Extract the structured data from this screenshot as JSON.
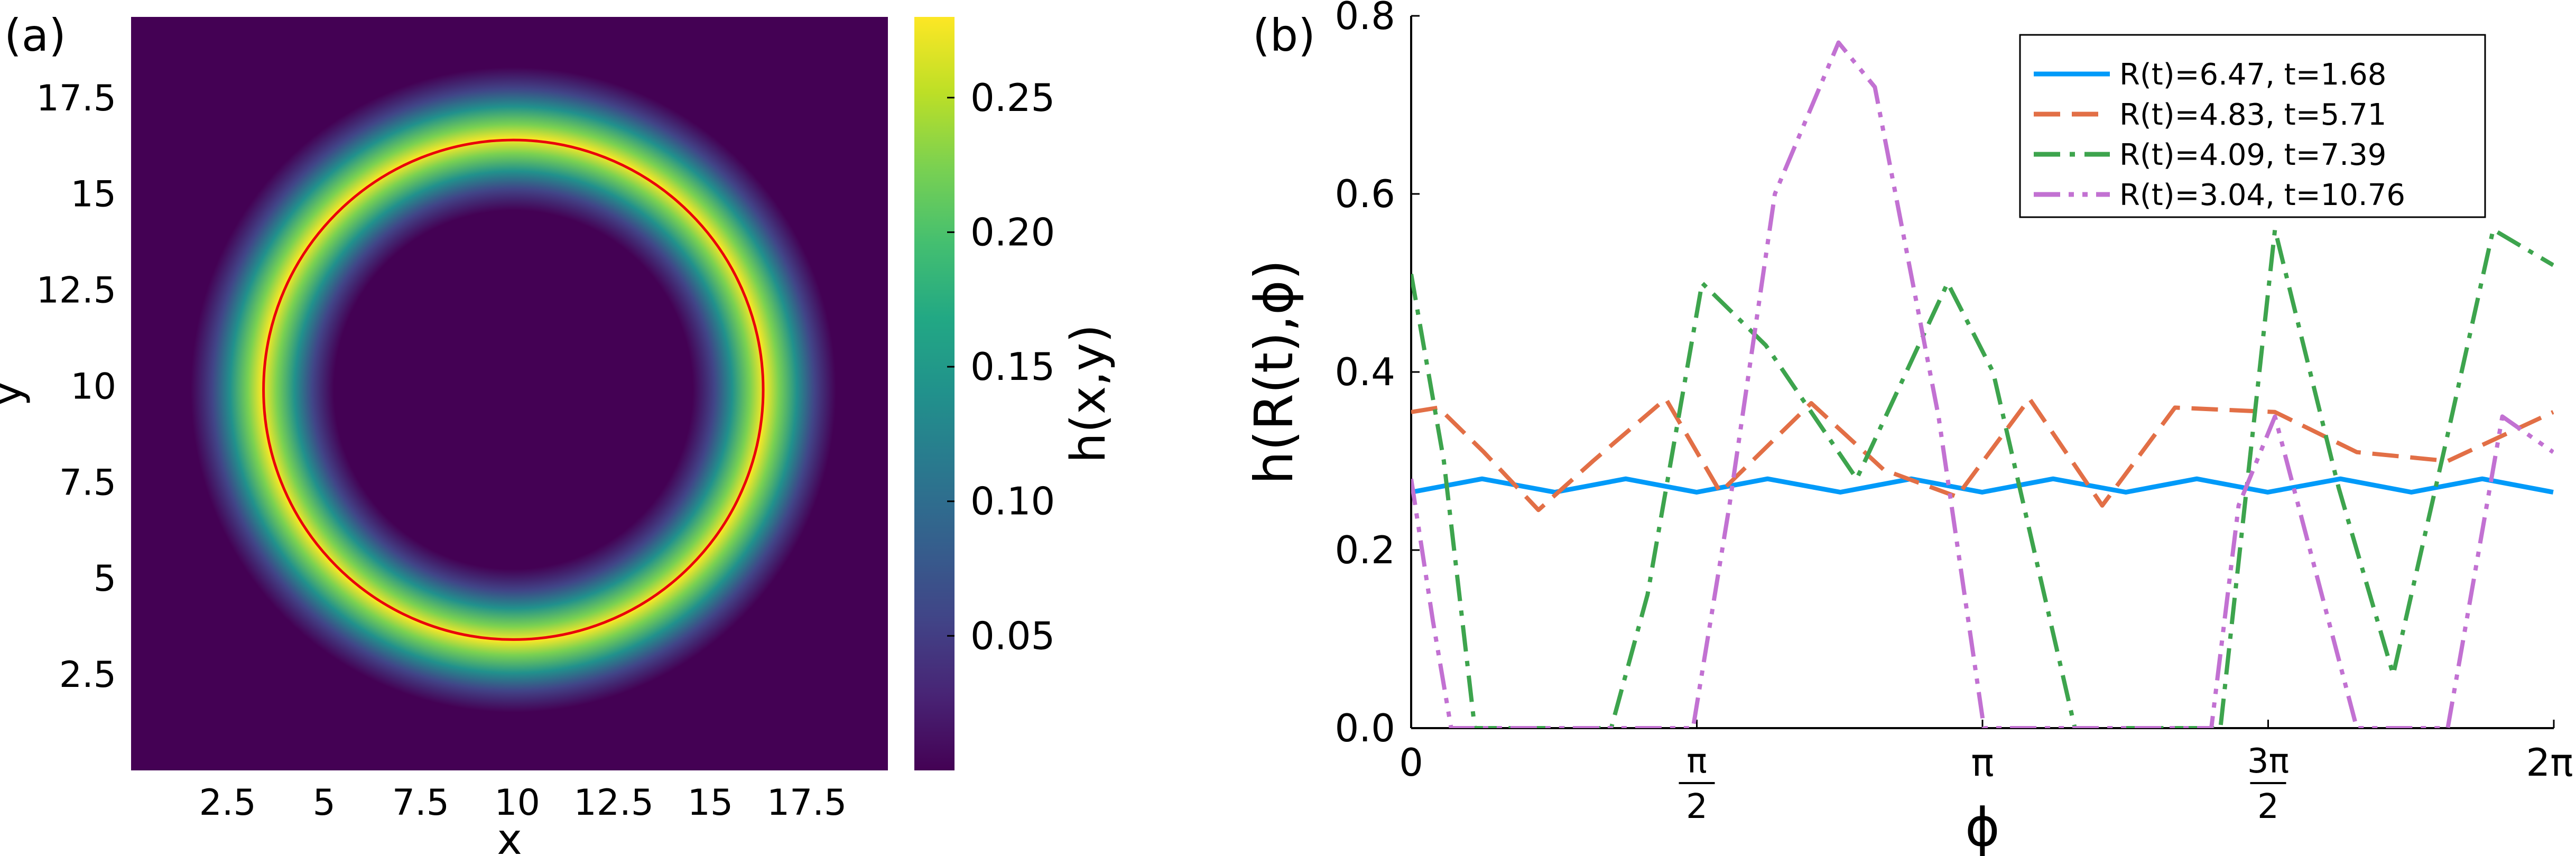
{
  "panels": {
    "a_label": "(a)",
    "b_label": "(b)"
  },
  "colors": {
    "map_low": "#440154",
    "ring_circle": "#e8000b",
    "series": [
      "#009af9",
      "#e26f46",
      "#3da44d",
      "#c271d2"
    ]
  },
  "chart_data": [
    {
      "type": "heatmap",
      "panel": "(a)",
      "xlabel": "x",
      "ylabel": "y",
      "xlim": [
        0,
        19.6
      ],
      "ylim": [
        0,
        19.6
      ],
      "xticks": [
        2.5,
        5,
        7.5,
        10,
        12.5,
        15,
        17.5
      ],
      "xtick_labels": [
        "2.5",
        "5",
        "7.5",
        "10",
        "12.5",
        "15",
        "17.5"
      ],
      "yticks": [
        2.5,
        5,
        7.5,
        10,
        12.5,
        15,
        17.5
      ],
      "ytick_labels": [
        "2.5",
        "5",
        "7.5",
        "10",
        "12.5",
        "15",
        "17.5"
      ],
      "colormap": "viridis",
      "colorbar": {
        "label": "h(x,y)",
        "range": [
          0,
          0.28
        ],
        "ticks": [
          0.05,
          0.1,
          0.15,
          0.2,
          0.25
        ],
        "tick_labels": [
          "0.05",
          "0.10",
          "0.15",
          "0.20",
          "0.25"
        ]
      },
      "ring": {
        "center": [
          9.9,
          9.9
        ],
        "radius": 6.5,
        "width": 1.3,
        "peak": 0.28
      },
      "overlay_circle": {
        "center": [
          9.9,
          9.9
        ],
        "radius": 6.47,
        "color": "#e8000b"
      }
    },
    {
      "type": "line",
      "panel": "(b)",
      "xlabel": "ϕ",
      "ylabel": "h(R(t),ϕ)",
      "xlim": [
        0,
        6.2832
      ],
      "ylim": [
        0,
        0.8
      ],
      "xticks": [
        0,
        1.5708,
        3.1416,
        4.7124,
        6.2832
      ],
      "xtick_labels": [
        "0",
        "π/2",
        "π",
        "3π/2",
        "2π"
      ],
      "yticks": [
        0,
        0.2,
        0.4,
        0.6,
        0.8
      ],
      "ytick_labels": [
        "0.0",
        "0.2",
        "0.4",
        "0.6",
        "0.8"
      ],
      "legend_position": "top-right",
      "series": [
        {
          "name": "R(t)=6.47, t=1.68",
          "color": "#009af9",
          "dash": "solid",
          "x": [
            0,
            0.39,
            0.79,
            1.18,
            1.57,
            1.96,
            2.36,
            2.75,
            3.14,
            3.53,
            3.93,
            4.32,
            4.71,
            5.11,
            5.5,
            5.89,
            6.28
          ],
          "y": [
            0.265,
            0.28,
            0.265,
            0.28,
            0.265,
            0.28,
            0.265,
            0.28,
            0.265,
            0.28,
            0.265,
            0.28,
            0.265,
            0.28,
            0.265,
            0.28,
            0.265
          ]
        },
        {
          "name": "R(t)=4.83, t=5.71",
          "color": "#e26f46",
          "dash": "dashed",
          "x": [
            0,
            0.15,
            0.4,
            0.7,
            1.0,
            1.4,
            1.7,
            2.2,
            2.6,
            3.0,
            3.4,
            3.8,
            4.2,
            4.75,
            5.2,
            5.7,
            6.28
          ],
          "y": [
            0.355,
            0.36,
            0.31,
            0.245,
            0.3,
            0.37,
            0.265,
            0.365,
            0.29,
            0.26,
            0.37,
            0.25,
            0.36,
            0.355,
            0.31,
            0.3,
            0.355
          ]
        },
        {
          "name": "R(t)=4.09, t=7.39",
          "color": "#3da44d",
          "dash": "dashdot",
          "x": [
            0,
            0.18,
            0.35,
            0.6,
            1.1,
            1.3,
            1.6,
            1.95,
            2.45,
            2.95,
            3.2,
            3.65,
            4.45,
            4.75,
            5.1,
            5.4,
            5.7,
            5.95,
            6.28
          ],
          "y": [
            0.51,
            0.3,
            0,
            0,
            0,
            0.15,
            0.5,
            0.43,
            0.28,
            0.5,
            0.4,
            0,
            0,
            0.56,
            0.27,
            0.06,
            0.33,
            0.56,
            0.52
          ]
        },
        {
          "name": "R(t)=3.04, t=10.76",
          "color": "#c271d2",
          "dash": "dashdotdot",
          "x": [
            0,
            0.12,
            0.22,
            0.7,
            1.55,
            1.75,
            2.0,
            2.35,
            2.55,
            2.9,
            3.15,
            3.55,
            4.4,
            4.55,
            4.75,
            5.2,
            5.4,
            5.7,
            6.0,
            6.28
          ],
          "y": [
            0.28,
            0.12,
            0,
            0,
            0,
            0.25,
            0.6,
            0.77,
            0.72,
            0.35,
            0,
            0,
            0,
            0.25,
            0.35,
            0,
            0,
            0,
            0.35,
            0.31
          ]
        }
      ]
    }
  ]
}
